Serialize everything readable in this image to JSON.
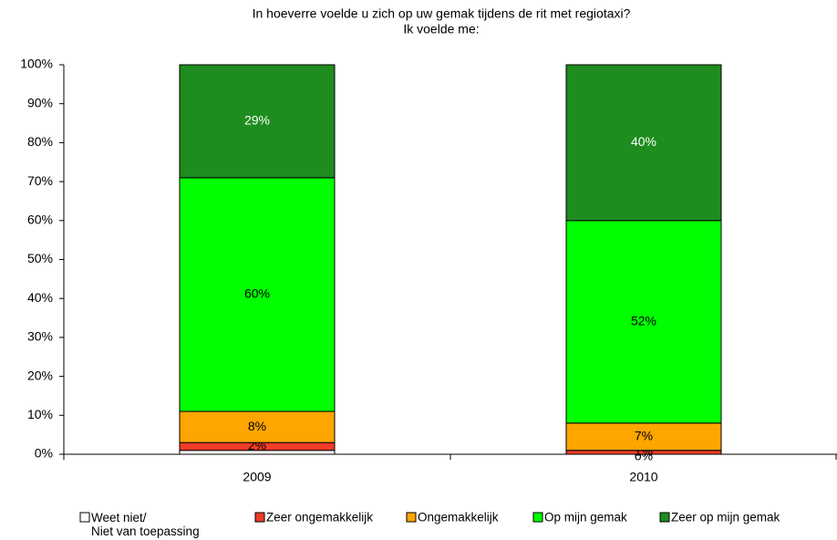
{
  "chart_data": {
    "type": "stacked_bar",
    "title": "In hoeverre voelde u zich op uw gemak tijdens de rit met regiotaxi?",
    "subtitle": "Ik voelde me:",
    "categories": [
      "2009",
      "2010"
    ],
    "series": [
      {
        "name": "Weet niet/\nNiet van toepassing",
        "color": "#ffffff",
        "values": [
          1,
          0
        ],
        "value_labels": [
          null,
          "0%"
        ]
      },
      {
        "name": "Zeer ongemakkelijk",
        "color": "#f03c28",
        "values": [
          2,
          1
        ],
        "value_labels": [
          "2%",
          "1%"
        ]
      },
      {
        "name": "Ongemakkelijk",
        "color": "#ffa500",
        "values": [
          8,
          7
        ],
        "value_labels": [
          "8%",
          "7%"
        ]
      },
      {
        "name": "Op mijn gemak",
        "color": "#00ff00",
        "values": [
          60,
          52
        ],
        "value_labels": [
          "60%",
          "52%"
        ]
      },
      {
        "name": "Zeer op mijn gemak",
        "color": "#1e8c1e",
        "values": [
          29,
          40
        ],
        "value_labels": [
          "29%",
          "40%"
        ]
      }
    ],
    "ylim": [
      0,
      100
    ],
    "yticks": [
      {
        "value": 0,
        "label": "0%"
      },
      {
        "value": 10,
        "label": "10%"
      },
      {
        "value": 20,
        "label": "20%"
      },
      {
        "value": 30,
        "label": "30%"
      },
      {
        "value": 40,
        "label": "40%"
      },
      {
        "value": 50,
        "label": "50%"
      },
      {
        "value": 60,
        "label": "60%"
      },
      {
        "value": 70,
        "label": "70%"
      },
      {
        "value": 80,
        "label": "80%"
      },
      {
        "value": 90,
        "label": "90%"
      },
      {
        "value": 100,
        "label": "100%"
      }
    ],
    "legend": "bottom"
  }
}
